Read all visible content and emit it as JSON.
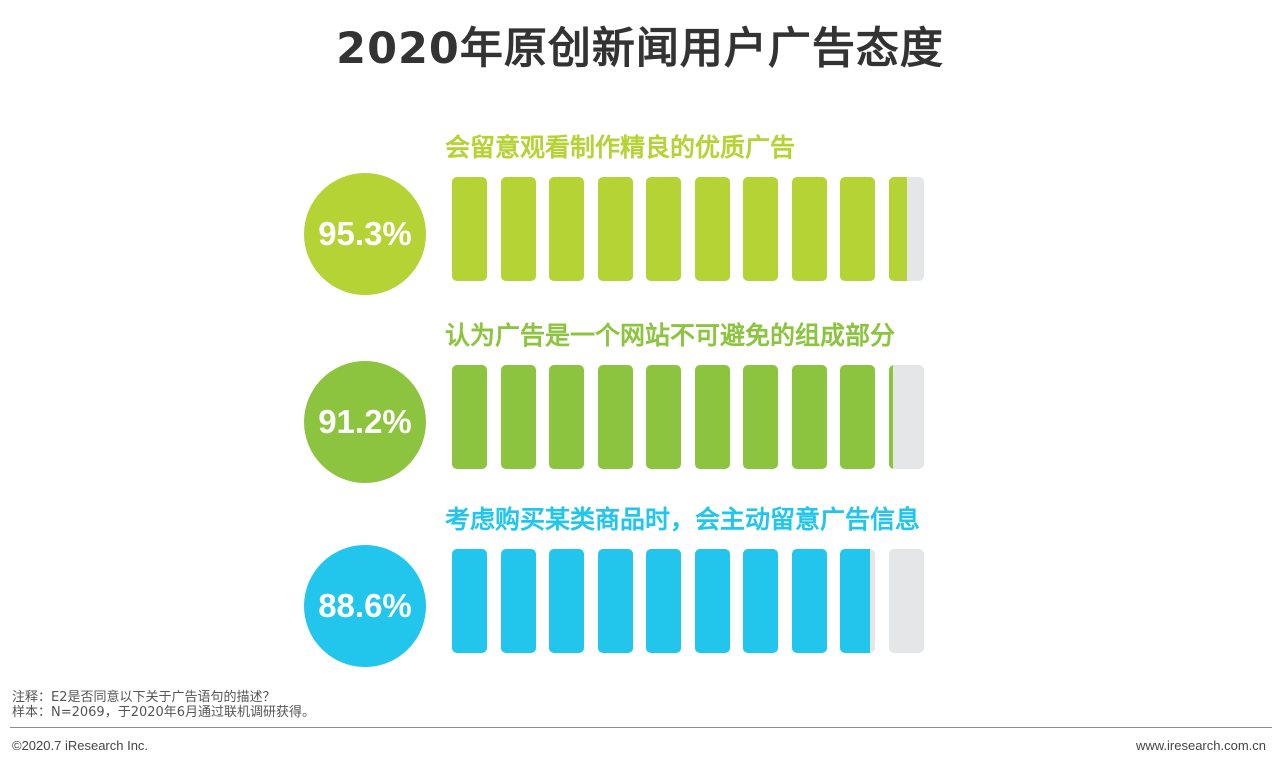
{
  "chart_data": {
    "type": "bar",
    "title": "2020年原创新闻用户广告态度",
    "unit": "%",
    "ylim": [
      0,
      100
    ],
    "bar_segments": 10,
    "categories": [
      "会留意观看制作精良的优质广告",
      "认为广告是一个网站不可避免的组成部分",
      "考虑购买某类商品时，会主动留意广告信息"
    ],
    "values": [
      95.3,
      91.2,
      88.6
    ],
    "value_labels": [
      "95.3%",
      "91.2%",
      "88.6%"
    ],
    "colors": [
      "#b5d334",
      "#8dc43f",
      "#22c6ed"
    ],
    "empty_color": "#e5e6e8"
  },
  "notes": {
    "note": "注释：E2是否同意以下关于广告语句的描述？",
    "sample": "样本：N=2069，于2020年6月通过联机调研获得。"
  },
  "footer": {
    "copyright": "©2020.7 iResearch Inc.",
    "website": "www.iresearch.com.cn"
  }
}
